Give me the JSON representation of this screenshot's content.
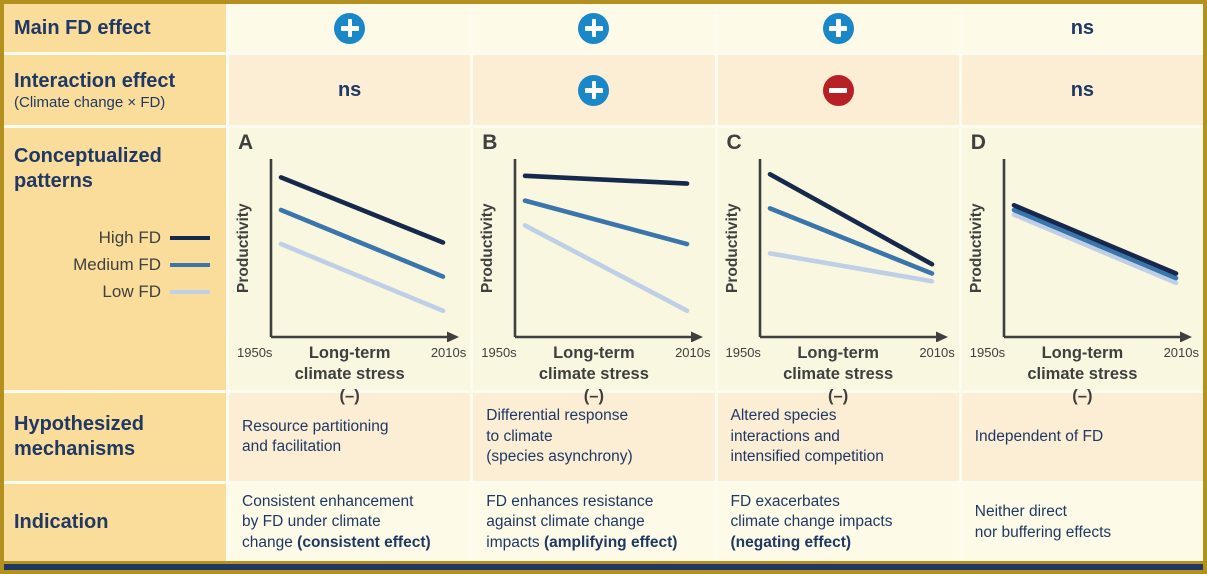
{
  "colors": {
    "navy": "#1F3864",
    "gray": "#3F3F3F",
    "axis": "#3F3F3F",
    "gold_header": "#FADD9A",
    "border_gold": "#B3901F",
    "row_pale": "#FDFBE7",
    "row_peach": "#FCEDD5",
    "chart_bg": "#F9F7E0",
    "plus": "#1A87C8",
    "minus": "#B72025",
    "bottom_bar": "#1F3864"
  },
  "rows": {
    "main_effect": {
      "label": "Main FD effect",
      "cells": [
        {
          "icon": "plus"
        },
        {
          "icon": "plus"
        },
        {
          "icon": "plus"
        },
        {
          "text": "ns"
        }
      ]
    },
    "interaction": {
      "label": "Interaction effect",
      "sublabel": "(Climate change × FD)",
      "cells": [
        {
          "text": "ns"
        },
        {
          "icon": "plus"
        },
        {
          "icon": "minus"
        },
        {
          "text": "ns"
        }
      ]
    },
    "patterns": {
      "label": "Conceptualized\npatterns"
    },
    "mechanisms": {
      "label": "Hypothesized\nmechanisms",
      "cells": [
        "Resource partitioning\nand facilitation",
        "Differential response\nto climate\n(species asynchrony)",
        "Altered species\ninteractions and\nintensified competition",
        "Independent of FD"
      ]
    },
    "indication": {
      "label": "Indication",
      "cells": [
        {
          "pre": "Consistent enhancement\nby FD under climate\nchange ",
          "bold": "(consistent effect)"
        },
        {
          "pre": "FD enhances resistance\nagainst climate change\nimpacts ",
          "bold": "(amplifying effect)"
        },
        {
          "pre": "FD exacerbates\nclimate change impacts\n",
          "bold": "(negating effect)"
        },
        {
          "pre": "Neither direct\nnor buffering effects",
          "bold": ""
        }
      ]
    }
  },
  "legend": {
    "items": [
      {
        "label": "High FD",
        "color": "#16294D"
      },
      {
        "label": "Medium FD",
        "color": "#3A76AB"
      },
      {
        "label": "Low FD",
        "color": "#BFCFE6"
      }
    ]
  },
  "chart_data": [
    {
      "type": "line",
      "panel": "A",
      "x": [
        "1950s",
        "2010s"
      ],
      "xlabel": "Long-term climate stress (–)",
      "xlabel_lines": [
        "Long-term",
        "climate stress (–)"
      ],
      "ylabel": "Productivity",
      "ylim": [
        0,
        1
      ],
      "series": [
        {
          "name": "High FD",
          "color": "#16294D",
          "values": [
            0.92,
            0.5
          ]
        },
        {
          "name": "Medium FD",
          "color": "#3A76AB",
          "values": [
            0.71,
            0.28
          ]
        },
        {
          "name": "Low FD",
          "color": "#BFCFE6",
          "values": [
            0.49,
            0.06
          ]
        }
      ]
    },
    {
      "type": "line",
      "panel": "B",
      "x": [
        "1950s",
        "2010s"
      ],
      "xlabel": "Long-term climate stress (–)",
      "xlabel_lines": [
        "Long-term",
        "climate stress (–)"
      ],
      "ylabel": "Productivity",
      "ylim": [
        0,
        1
      ],
      "series": [
        {
          "name": "High FD",
          "color": "#16294D",
          "values": [
            0.93,
            0.88
          ]
        },
        {
          "name": "Medium FD",
          "color": "#3A76AB",
          "values": [
            0.77,
            0.49
          ]
        },
        {
          "name": "Low FD",
          "color": "#BFCFE6",
          "values": [
            0.61,
            0.06
          ]
        }
      ]
    },
    {
      "type": "line",
      "panel": "C",
      "x": [
        "1950s",
        "2010s"
      ],
      "xlabel": "Long-term climate stress (–)",
      "xlabel_lines": [
        "Long-term",
        "climate stress (–)"
      ],
      "ylabel": "Productivity",
      "ylim": [
        0,
        1
      ],
      "series": [
        {
          "name": "High FD",
          "color": "#16294D",
          "values": [
            0.94,
            0.36
          ]
        },
        {
          "name": "Medium FD",
          "color": "#3A76AB",
          "values": [
            0.72,
            0.3
          ]
        },
        {
          "name": "Low FD",
          "color": "#BFCFE6",
          "values": [
            0.43,
            0.25
          ]
        }
      ]
    },
    {
      "type": "line",
      "panel": "D",
      "x": [
        "1950s",
        "2010s"
      ],
      "xlabel": "Long-term climate stress (–)",
      "xlabel_lines": [
        "Long-term",
        "climate stress (–)"
      ],
      "ylabel": "Productivity",
      "ylim": [
        0,
        1
      ],
      "series": [
        {
          "name": "High FD",
          "color": "#16294D",
          "values": [
            0.74,
            0.3
          ]
        },
        {
          "name": "Medium FD",
          "color": "#3A76AB",
          "values": [
            0.71,
            0.27
          ]
        },
        {
          "name": "Low FD",
          "color": "#BFCFE6",
          "values": [
            0.68,
            0.24
          ]
        }
      ]
    }
  ]
}
